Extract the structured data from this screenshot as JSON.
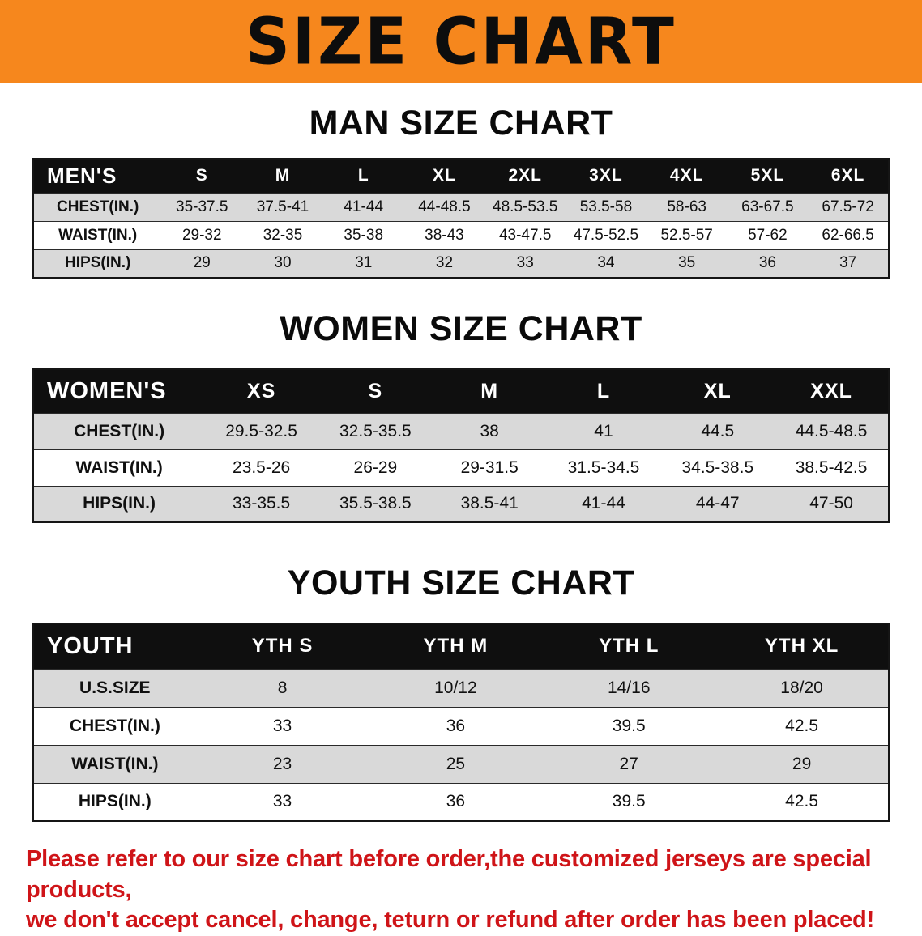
{
  "banner": {
    "title": "SIZE CHART",
    "bg_color": "#f6871d",
    "text_color": "#0d0d0d"
  },
  "sections": {
    "men": {
      "heading": "MAN SIZE CHART",
      "table": {
        "header": [
          "MEN'S",
          "S",
          "M",
          "L",
          "XL",
          "2XL",
          "3XL",
          "4XL",
          "5XL",
          "6XL"
        ],
        "rows": [
          {
            "label": "CHEST(IN.)",
            "values": [
              "35-37.5",
              "37.5-41",
              "41-44",
              "44-48.5",
              "48.5-53.5",
              "53.5-58",
              "58-63",
              "63-67.5",
              "67.5-72"
            ]
          },
          {
            "label": "WAIST(IN.)",
            "values": [
              "29-32",
              "32-35",
              "35-38",
              "38-43",
              "43-47.5",
              "47.5-52.5",
              "52.5-57",
              "57-62",
              "62-66.5"
            ]
          },
          {
            "label": "HIPS(IN.)",
            "values": [
              "29",
              "30",
              "31",
              "32",
              "33",
              "34",
              "35",
              "36",
              "37"
            ]
          }
        ]
      }
    },
    "women": {
      "heading": "WOMEN SIZE CHART",
      "table": {
        "header": [
          "WOMEN'S",
          "XS",
          "S",
          "M",
          "L",
          "XL",
          "XXL"
        ],
        "rows": [
          {
            "label": "CHEST(IN.)",
            "values": [
              "29.5-32.5",
              "32.5-35.5",
              "38",
              "41",
              "44.5",
              "44.5-48.5"
            ]
          },
          {
            "label": "WAIST(IN.)",
            "values": [
              "23.5-26",
              "26-29",
              "29-31.5",
              "31.5-34.5",
              "34.5-38.5",
              "38.5-42.5"
            ]
          },
          {
            "label": "HIPS(IN.)",
            "values": [
              "33-35.5",
              "35.5-38.5",
              "38.5-41",
              "41-44",
              "44-47",
              "47-50"
            ]
          }
        ]
      }
    },
    "youth": {
      "heading": "YOUTH SIZE CHART",
      "table": {
        "header": [
          "YOUTH",
          "YTH S",
          "YTH M",
          "YTH L",
          "YTH XL"
        ],
        "rows": [
          {
            "label": "U.S.SIZE",
            "values": [
              "8",
              "10/12",
              "14/16",
              "18/20"
            ]
          },
          {
            "label": "CHEST(IN.)",
            "values": [
              "33",
              "36",
              "39.5",
              "42.5"
            ]
          },
          {
            "label": "WAIST(IN.)",
            "values": [
              "23",
              "25",
              "27",
              "29"
            ]
          },
          {
            "label": "HIPS(IN.)",
            "values": [
              "33",
              "36",
              "39.5",
              "42.5"
            ]
          }
        ]
      }
    }
  },
  "footer": {
    "lines": [
      "Please refer to our size chart before order,the customized jerseys are special products,",
      "we don't accept cancel, change, teturn or refund after order has been placed!"
    ]
  },
  "colors": {
    "banner_orange": "#f6871d",
    "header_black": "#0f0f0f",
    "row_gray": "#d9d9d9",
    "disclaimer_red": "#cf1418"
  }
}
